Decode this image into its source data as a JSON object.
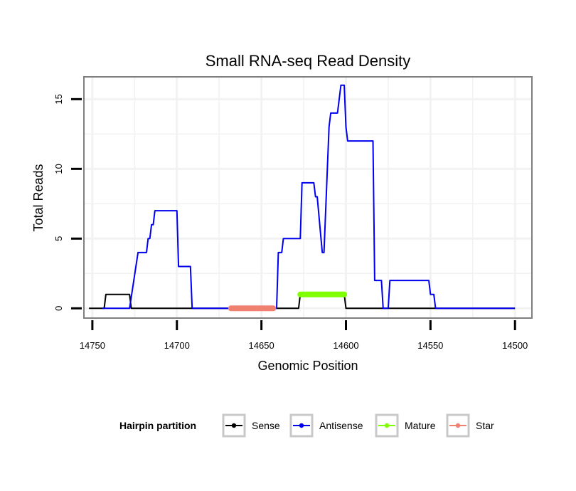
{
  "chart_data": {
    "type": "line",
    "title": "Small RNA-seq Read Density",
    "xlabel": "Genomic Position",
    "ylabel": "Total Reads",
    "xlim": [
      14755,
      14490
    ],
    "ylim": [
      -0.7,
      16.6
    ],
    "x_reversed": true,
    "grid": true,
    "x_ticks": [
      14750,
      14700,
      14650,
      14600,
      14550,
      14500
    ],
    "y_ticks": [
      0,
      5,
      10,
      15
    ],
    "legend": {
      "title": "Hairpin partition",
      "position": "bottom",
      "entries": [
        "Sense",
        "Antisense",
        "Mature",
        "Star"
      ]
    },
    "series": [
      {
        "name": "Sense",
        "color": "#000000",
        "width": 2,
        "points": [
          [
            14752,
            0
          ],
          [
            14743,
            0
          ],
          [
            14742,
            1
          ],
          [
            14728,
            1
          ],
          [
            14727,
            0
          ],
          [
            14663,
            0
          ],
          [
            14662,
            0
          ],
          [
            14628,
            0
          ],
          [
            14627,
            1
          ],
          [
            14601,
            1
          ],
          [
            14600,
            0
          ],
          [
            14500,
            0
          ]
        ]
      },
      {
        "name": "Antisense",
        "color": "#0000ee",
        "width": 2,
        "points": [
          [
            14744,
            0
          ],
          [
            14728,
            0
          ],
          [
            14723,
            4
          ],
          [
            14718,
            4
          ],
          [
            14717,
            5
          ],
          [
            14716,
            5
          ],
          [
            14715,
            6
          ],
          [
            14714,
            6
          ],
          [
            14713,
            7
          ],
          [
            14700,
            7
          ],
          [
            14699,
            3
          ],
          [
            14692,
            3
          ],
          [
            14691,
            0
          ],
          [
            14641,
            0
          ],
          [
            14640,
            4
          ],
          [
            14638,
            4
          ],
          [
            14637,
            5
          ],
          [
            14627,
            5
          ],
          [
            14626,
            9
          ],
          [
            14619,
            9
          ],
          [
            14618,
            8
          ],
          [
            14617,
            8
          ],
          [
            14614,
            4
          ],
          [
            14613,
            4
          ],
          [
            14610,
            13
          ],
          [
            14609,
            14
          ],
          [
            14605,
            14
          ],
          [
            14603,
            16
          ],
          [
            14601,
            16
          ],
          [
            14600,
            13
          ],
          [
            14599,
            12
          ],
          [
            14584,
            12
          ],
          [
            14583,
            2
          ],
          [
            14579,
            2
          ],
          [
            14578,
            0
          ],
          [
            14575,
            0
          ],
          [
            14574,
            2
          ],
          [
            14551,
            2
          ],
          [
            14550,
            1
          ],
          [
            14548,
            1
          ],
          [
            14547,
            0
          ],
          [
            14500,
            0
          ]
        ]
      },
      {
        "name": "Mature",
        "color": "#80ff00",
        "width": 8,
        "points": [
          [
            14627,
            1
          ],
          [
            14601,
            1
          ]
        ]
      },
      {
        "name": "Star",
        "color": "#f08070",
        "width": 8,
        "points": [
          [
            14668,
            0
          ],
          [
            14643,
            0
          ]
        ]
      }
    ]
  }
}
